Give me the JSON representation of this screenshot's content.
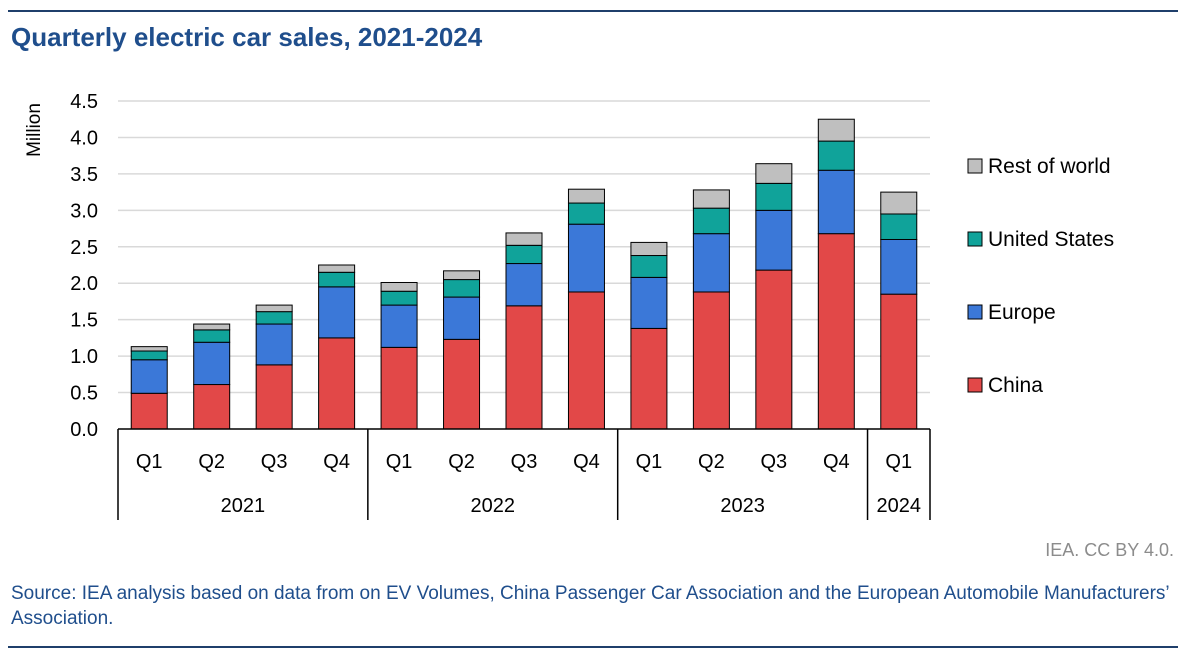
{
  "title": "Quarterly electric car sales, 2021-2024",
  "credit": "IEA. CC BY 4.0.",
  "source": "Source: IEA analysis based on data from on EV Volumes, China Passenger Car Association and the European Automobile Manufacturers’ Association.",
  "chart_data": {
    "type": "bar",
    "stacked": true,
    "ylabel": "Million",
    "ylim": [
      0,
      4.5
    ],
    "yticks": [
      "0.0",
      "0.5",
      "1.0",
      "1.5",
      "2.0",
      "2.5",
      "3.0",
      "3.5",
      "4.0",
      "4.5"
    ],
    "grid": true,
    "legend_position": "right",
    "categories": [
      "Q1",
      "Q2",
      "Q3",
      "Q4",
      "Q1",
      "Q2",
      "Q3",
      "Q4",
      "Q1",
      "Q2",
      "Q3",
      "Q4",
      "Q1"
    ],
    "groups": [
      {
        "label": "2021",
        "count": 4
      },
      {
        "label": "2022",
        "count": 4
      },
      {
        "label": "2023",
        "count": 4
      },
      {
        "label": "2024",
        "count": 1
      }
    ],
    "series": [
      {
        "name": "China",
        "color": "#e24848",
        "values": [
          0.49,
          0.61,
          0.88,
          1.25,
          1.12,
          1.23,
          1.69,
          1.88,
          1.38,
          1.88,
          2.18,
          2.68,
          1.85
        ]
      },
      {
        "name": "Europe",
        "color": "#3b78d8",
        "values": [
          0.46,
          0.58,
          0.56,
          0.7,
          0.58,
          0.58,
          0.58,
          0.93,
          0.7,
          0.8,
          0.82,
          0.87,
          0.75
        ]
      },
      {
        "name": "United States",
        "color": "#10a39a",
        "values": [
          0.12,
          0.17,
          0.17,
          0.2,
          0.19,
          0.24,
          0.25,
          0.29,
          0.3,
          0.35,
          0.37,
          0.4,
          0.35
        ]
      },
      {
        "name": "Rest of world",
        "color": "#bfbfbf",
        "values": [
          0.06,
          0.08,
          0.09,
          0.1,
          0.12,
          0.12,
          0.17,
          0.19,
          0.18,
          0.25,
          0.27,
          0.3,
          0.3
        ]
      }
    ]
  }
}
